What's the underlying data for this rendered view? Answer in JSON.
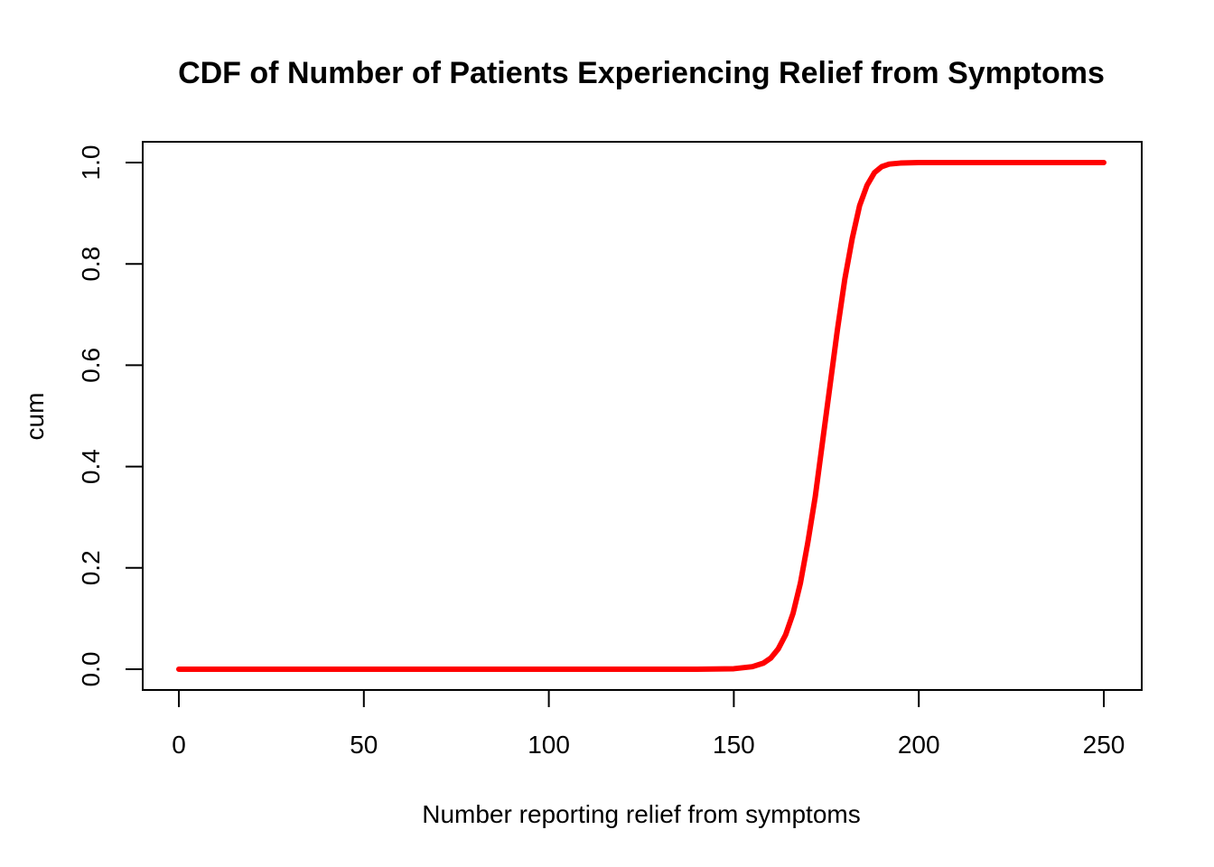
{
  "chart_data": {
    "type": "line",
    "title": "CDF of Number of Patients Experiencing Relief from Symptoms",
    "xlabel": "Number reporting relief from symptoms",
    "ylabel": "cum",
    "xlim": [
      0,
      250
    ],
    "ylim": [
      0,
      1
    ],
    "x_ticks": [
      "0",
      "50",
      "100",
      "150",
      "200",
      "250"
    ],
    "y_ticks": [
      "0.0",
      "0.2",
      "0.4",
      "0.6",
      "0.8",
      "1.0"
    ],
    "grid": false,
    "legend": "none",
    "series": [
      {
        "color": "#ff0000",
        "x": [
          0,
          50,
          100,
          140,
          150,
          155,
          158,
          160,
          162,
          164,
          166,
          168,
          170,
          172,
          174,
          176,
          178,
          180,
          182,
          184,
          186,
          188,
          190,
          192,
          195,
          200,
          250
        ],
        "y": [
          0,
          0,
          0,
          0,
          0.001,
          0.005,
          0.012,
          0.022,
          0.04,
          0.068,
          0.11,
          0.17,
          0.25,
          0.34,
          0.45,
          0.56,
          0.67,
          0.77,
          0.85,
          0.915,
          0.955,
          0.98,
          0.992,
          0.997,
          0.999,
          1,
          1
        ]
      }
    ]
  }
}
